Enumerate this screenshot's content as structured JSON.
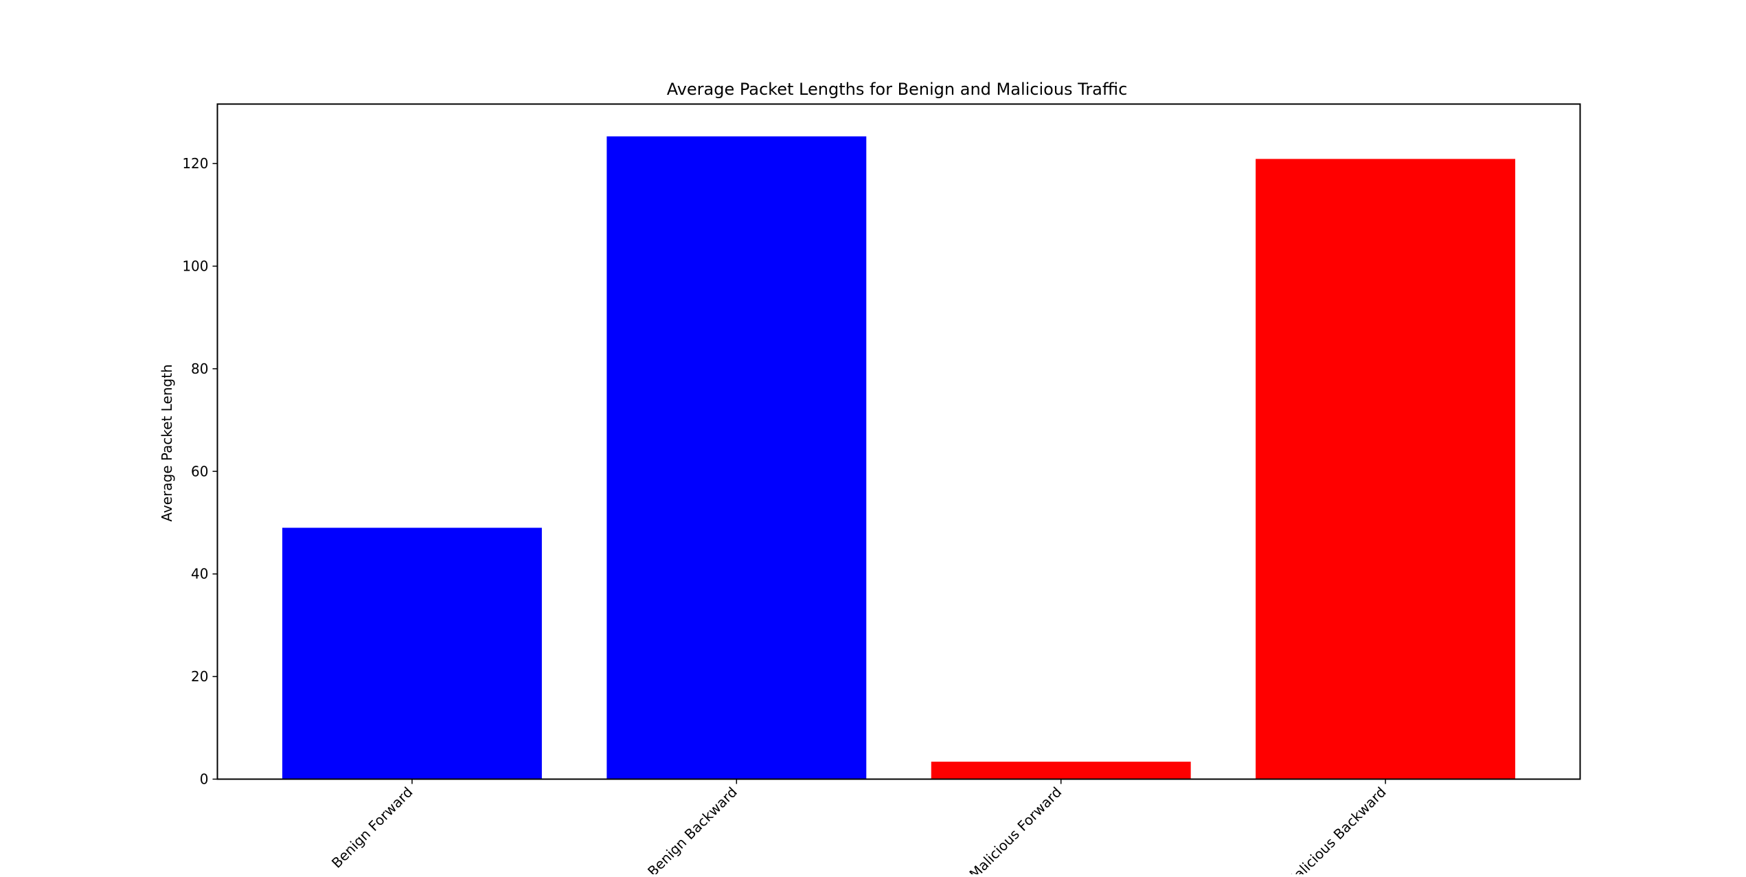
{
  "chart_data": {
    "type": "bar",
    "title": "Average Packet Lengths for Benign and Malicious Traffic",
    "xlabel": "",
    "ylabel": "Average Packet Length",
    "categories": [
      "Benign Forward",
      "Benign Backward",
      "Malicious Forward",
      "Malicious Backward"
    ],
    "values": [
      49,
      125.3,
      3.4,
      120.9
    ],
    "bar_colors": [
      "#0000ff",
      "#0000ff",
      "#ff0000",
      "#ff0000"
    ],
    "ylim": [
      0,
      131.6
    ],
    "yticks": [
      0,
      20,
      40,
      60,
      80,
      100,
      120
    ],
    "xtick_rotation": 45,
    "grid": false,
    "legend": "none"
  }
}
